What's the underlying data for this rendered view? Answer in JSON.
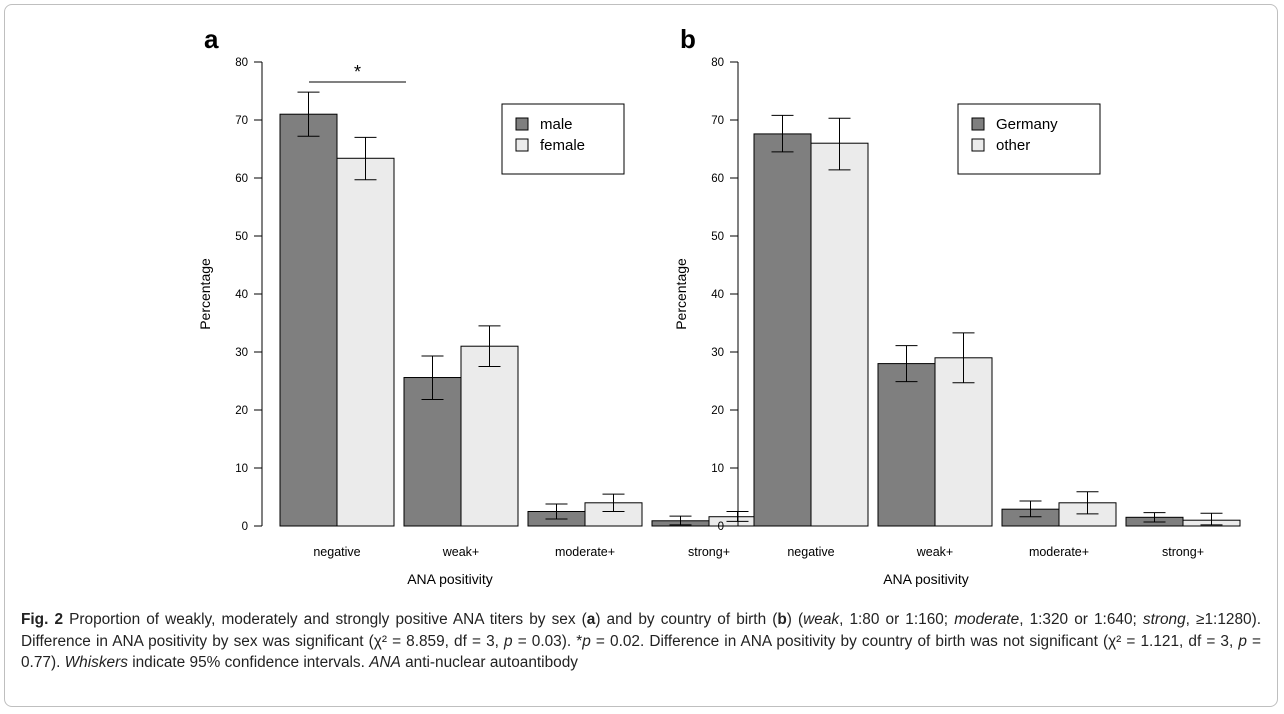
{
  "chart_data": [
    {
      "panel_label": "a",
      "type": "bar",
      "categories": [
        "negative",
        "weak+",
        "moderate+",
        "strong+"
      ],
      "series": [
        {
          "name": "male",
          "values": [
            71.0,
            25.6,
            2.5,
            0.9
          ],
          "ci_low": [
            67.2,
            21.8,
            1.2,
            0.2
          ],
          "ci_high": [
            74.8,
            29.3,
            3.8,
            1.7
          ],
          "color": "#7f7f7f"
        },
        {
          "name": "female",
          "values": [
            63.4,
            31.0,
            4.0,
            1.6
          ],
          "ci_low": [
            59.7,
            27.5,
            2.5,
            0.8
          ],
          "ci_high": [
            67.0,
            34.5,
            5.5,
            2.5
          ],
          "color": "#ebebeb"
        }
      ],
      "ylabel": "Percentage",
      "xlabel": "ANA positivity",
      "ylim": [
        0,
        80
      ],
      "yticks": [
        0,
        10,
        20,
        30,
        40,
        50,
        60,
        70,
        80
      ],
      "legend_position": "top-right",
      "significance_marker": "*",
      "grid": false
    },
    {
      "panel_label": "b",
      "type": "bar",
      "categories": [
        "negative",
        "weak+",
        "moderate+",
        "strong+"
      ],
      "series": [
        {
          "name": "Germany",
          "values": [
            67.6,
            28.0,
            2.9,
            1.5
          ],
          "ci_low": [
            64.5,
            24.9,
            1.6,
            0.7
          ],
          "ci_high": [
            70.8,
            31.1,
            4.3,
            2.3
          ],
          "color": "#7f7f7f"
        },
        {
          "name": "other",
          "values": [
            66.0,
            29.0,
            4.0,
            1.0
          ],
          "ci_low": [
            61.4,
            24.7,
            2.1,
            0.2
          ],
          "ci_high": [
            70.3,
            33.3,
            5.9,
            2.2
          ],
          "color": "#ebebeb"
        }
      ],
      "ylabel": "Percentage",
      "xlabel": "ANA positivity",
      "ylim": [
        0,
        80
      ],
      "yticks": [
        0,
        10,
        20,
        30,
        40,
        50,
        60,
        70,
        80
      ],
      "legend_position": "top-right",
      "grid": false
    }
  ],
  "caption": {
    "fig_label": "Fig. 2",
    "segments": [
      {
        "t": " Proportion of weakly, moderately and strongly positive ANA titers by sex ("
      },
      {
        "t": "a",
        "s": "b"
      },
      {
        "t": ") and by country of birth ("
      },
      {
        "t": "b",
        "s": "b"
      },
      {
        "t": ") ("
      },
      {
        "t": "weak",
        "s": "i"
      },
      {
        "t": ", 1:80 or 1:160; "
      },
      {
        "t": "moderate",
        "s": "i"
      },
      {
        "t": ", 1:320 or 1:640; "
      },
      {
        "t": "strong",
        "s": "i"
      },
      {
        "t": ", ≥1:1280). Difference in ANA positivity by sex was significant (χ² = 8.859, df = 3, "
      },
      {
        "t": "p",
        "s": "i"
      },
      {
        "t": " = 0.03). *"
      },
      {
        "t": "p",
        "s": "i"
      },
      {
        "t": " = 0.02. Difference in ANA positivity by country of birth was not significant (χ² = 1.121, df = 3, "
      },
      {
        "t": "p",
        "s": "i"
      },
      {
        "t": " = 0.77). "
      },
      {
        "t": "Whiskers",
        "s": "i"
      },
      {
        "t": " indicate 95% confidence intervals. "
      },
      {
        "t": "ANA",
        "s": "i"
      },
      {
        "t": " anti-nuclear autoantibody"
      }
    ]
  }
}
